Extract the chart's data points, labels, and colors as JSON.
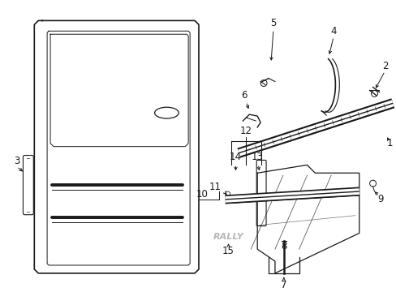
{
  "background_color": "#ffffff",
  "line_color": "#1a1a1a",
  "figsize": [
    4.89,
    3.6
  ],
  "dpi": 100,
  "rally_text": "RALLY"
}
